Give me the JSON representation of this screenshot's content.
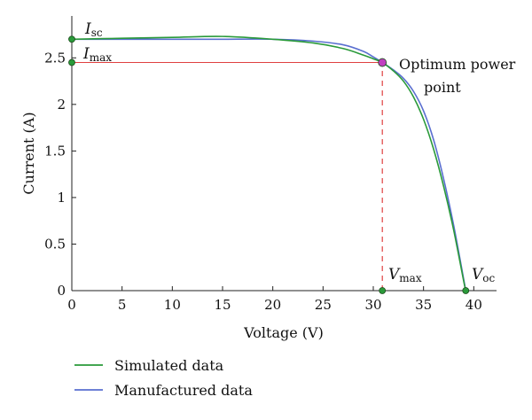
{
  "chart_data": {
    "type": "line",
    "xlabel": "Voltage (V)",
    "ylabel": "Current (A)",
    "xlim": [
      0,
      42
    ],
    "ylim": [
      0,
      2.95
    ],
    "x_ticks": [
      0,
      5,
      10,
      15,
      20,
      25,
      30,
      35,
      40
    ],
    "y_ticks": [
      0,
      0.5,
      1,
      1.5,
      2,
      2.5
    ],
    "x_tick_labels": [
      "0",
      "5",
      "10",
      "15",
      "20",
      "25",
      "30",
      "35",
      "40"
    ],
    "y_tick_labels": [
      "0",
      "0.5",
      "1",
      "1.5",
      "2",
      "2.5"
    ],
    "grid": false,
    "legend_position": "bottom-left-below",
    "series": [
      {
        "name": "Simulated data",
        "color": "#2a9a3a",
        "x": [
          0,
          5,
          10,
          15,
          20,
          24,
          27,
          29,
          30,
          30.9,
          32,
          33,
          34,
          35,
          36,
          37,
          38,
          39,
          39.2
        ],
        "y": [
          2.7,
          2.71,
          2.72,
          2.73,
          2.7,
          2.66,
          2.6,
          2.53,
          2.49,
          2.45,
          2.36,
          2.25,
          2.08,
          1.84,
          1.52,
          1.12,
          0.65,
          0.1,
          0.0
        ]
      },
      {
        "name": "Manufactured data",
        "color": "#5a6fd0",
        "x": [
          0,
          5,
          10,
          15,
          20,
          24,
          27,
          29,
          30,
          30.9,
          32,
          33,
          34,
          35,
          36,
          37,
          38,
          39,
          39.2
        ],
        "y": [
          2.7,
          2.7,
          2.7,
          2.7,
          2.7,
          2.68,
          2.64,
          2.57,
          2.51,
          2.45,
          2.37,
          2.28,
          2.14,
          1.93,
          1.62,
          1.2,
          0.7,
          0.12,
          0.0
        ]
      }
    ],
    "points": [
      {
        "name": "isc-point",
        "x": 0,
        "y": 2.7,
        "color": "#2a9a3a"
      },
      {
        "name": "imax-point",
        "x": 0,
        "y": 2.45,
        "color": "#2a9a3a"
      },
      {
        "name": "vmax-point",
        "x": 30.9,
        "y": 0,
        "color": "#2a9a3a"
      },
      {
        "name": "voc-point",
        "x": 39.2,
        "y": 0,
        "color": "#2a9a3a"
      },
      {
        "name": "optimum-point",
        "x": 30.9,
        "y": 2.45,
        "color": "#c040c0"
      }
    ],
    "reference_lines": {
      "imax_horizontal": {
        "from": [
          0,
          2.45
        ],
        "to": [
          30.9,
          2.45
        ],
        "color": "#e04040",
        "style": "solid"
      },
      "vmax_vertical": {
        "from": [
          30.9,
          0
        ],
        "to": [
          30.9,
          2.45
        ],
        "color": "#e04040",
        "style": "dashed"
      }
    },
    "annotations": {
      "isc": {
        "main": "I",
        "sub": "sc"
      },
      "imax": {
        "main": "I",
        "sub": "max"
      },
      "vmax": {
        "main": "V",
        "sub": "max"
      },
      "voc": {
        "main": "V",
        "sub": "oc"
      },
      "optimum_line1": "Optimum power",
      "optimum_line2": "point"
    }
  }
}
